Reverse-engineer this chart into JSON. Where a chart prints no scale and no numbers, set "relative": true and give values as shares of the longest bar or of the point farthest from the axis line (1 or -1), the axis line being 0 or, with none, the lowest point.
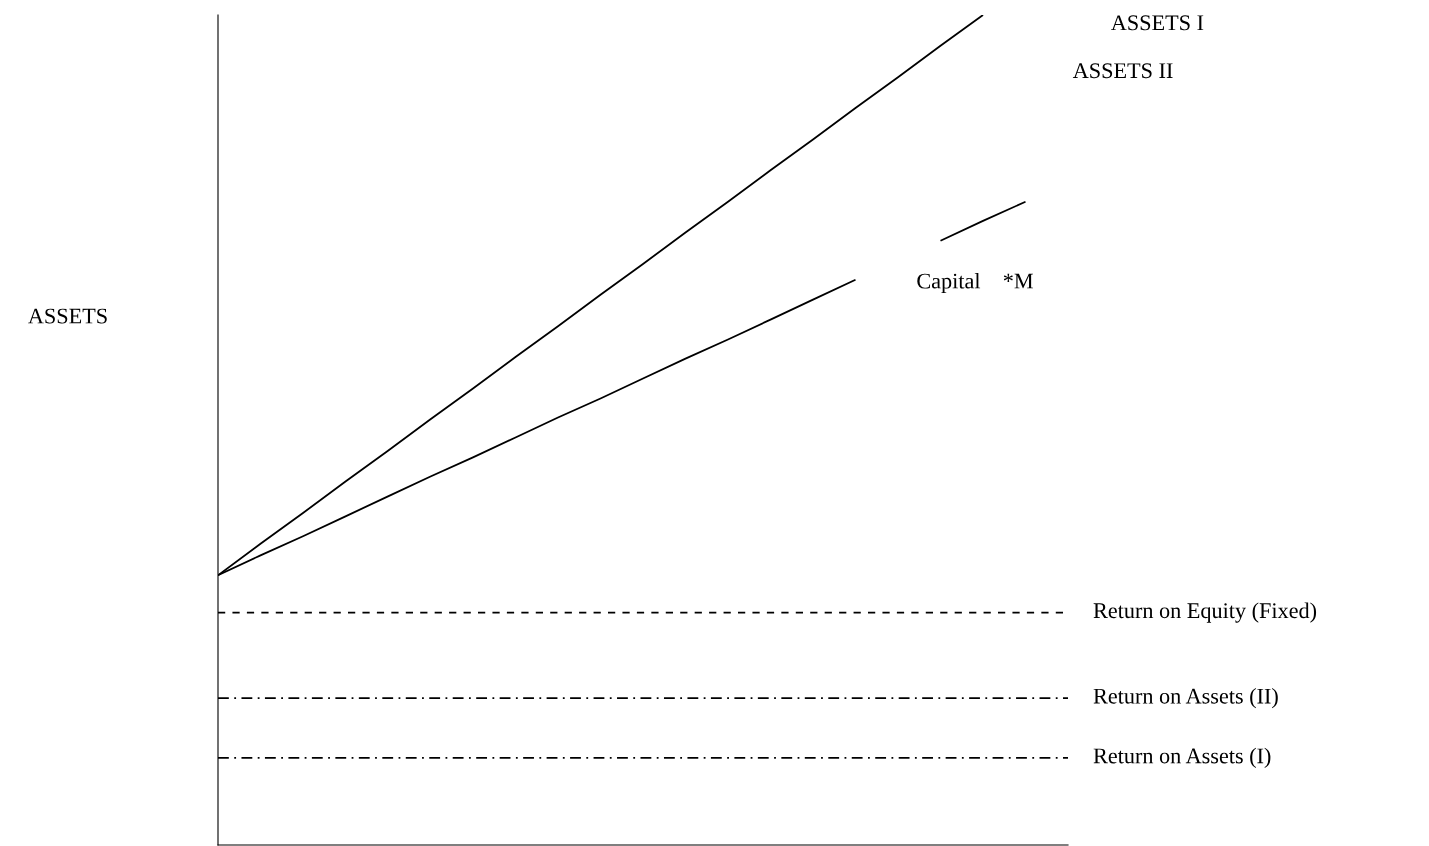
{
  "chart_data": {
    "type": "line",
    "relative": true,
    "marker": "none",
    "categories": [
      null,
      null,
      null,
      null,
      null,
      null,
      null,
      null,
      null,
      null,
      null,
      null,
      null,
      null,
      null,
      null,
      null,
      null,
      null,
      null,
      null
    ],
    "series": [
      {
        "name": "ASSETS I",
        "color": "#000000",
        "line_style": "solid",
        "values": [
          0.325,
          0.363,
          0.4,
          0.438,
          0.475,
          0.513,
          0.55,
          0.588,
          0.625,
          0.663,
          0.7,
          0.738,
          0.775,
          0.813,
          0.85,
          0.888,
          0.925,
          0.963,
          1.0,
          null,
          null
        ]
      },
      {
        "name": "ASSETS II",
        "color": "#000000",
        "line_style": "solid",
        "values": [
          0.325,
          0.349,
          0.372,
          0.396,
          0.42,
          0.444,
          0.467,
          0.491,
          0.515,
          0.538,
          0.562,
          0.586,
          0.609,
          0.633,
          0.657,
          0.681,
          null,
          0.728,
          0.752,
          0.775,
          null
        ]
      },
      {
        "name": "Return on Equity (Fixed)",
        "color": "#000000",
        "line_style": "dashed",
        "values": [
          0.28,
          0.28,
          0.28,
          0.28,
          0.28,
          0.28,
          0.28,
          0.28,
          0.28,
          0.28,
          0.28,
          0.28,
          0.28,
          0.28,
          0.28,
          0.28,
          0.28,
          0.28,
          0.28,
          0.28,
          0.28
        ]
      },
      {
        "name": "Return on Assets (II)",
        "color": "#000000",
        "line_style": "dashdot",
        "values": [
          0.177,
          0.177,
          0.177,
          0.177,
          0.177,
          0.177,
          0.177,
          0.177,
          0.177,
          0.177,
          0.177,
          0.177,
          0.177,
          0.177,
          0.177,
          0.177,
          0.177,
          0.177,
          0.177,
          0.177,
          0.177
        ]
      },
      {
        "name": "Return on Assets (I)",
        "color": "#000000",
        "line_style": "dashdot",
        "values": [
          0.105,
          0.105,
          0.105,
          0.105,
          0.105,
          0.105,
          0.105,
          0.105,
          0.105,
          0.105,
          0.105,
          0.105,
          0.105,
          0.105,
          0.105,
          0.105,
          0.105,
          0.105,
          0.105,
          0.105,
          0.105
        ]
      }
    ],
    "annotations": [
      "Capital    *M",
      "ASSETS"
    ]
  }
}
